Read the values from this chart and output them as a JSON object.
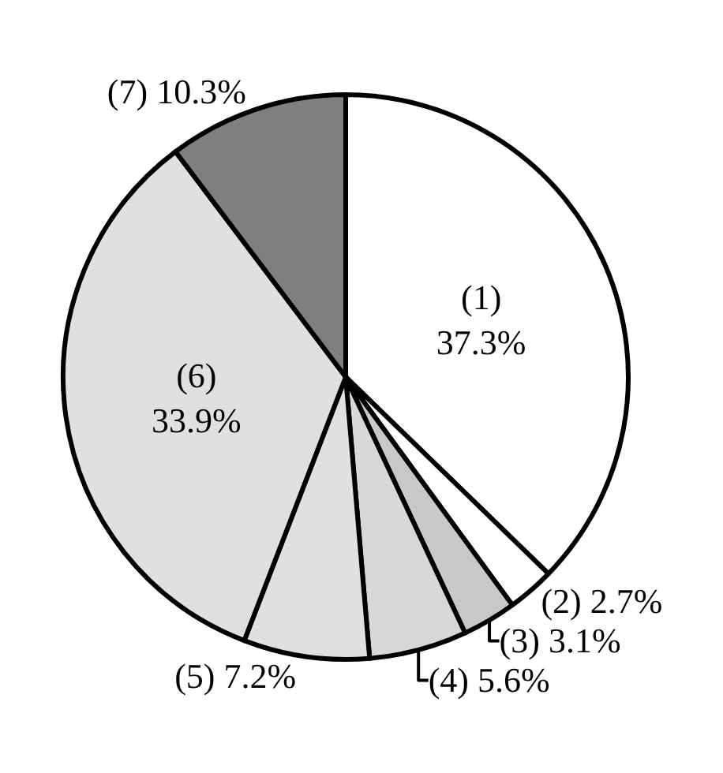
{
  "chart_data": {
    "type": "pie",
    "categories": [
      "(1)",
      "(2)",
      "(3)",
      "(4)",
      "(5)",
      "(6)",
      "(7)"
    ],
    "values": [
      37.3,
      2.7,
      3.1,
      5.6,
      7.2,
      33.9,
      10.3
    ],
    "value_labels": [
      "37.3%",
      "2.7%",
      "3.1%",
      "5.6%",
      "7.2%",
      "33.9%",
      "10.3%"
    ],
    "colors": [
      "#ffffff",
      "#ffffff",
      "#c8c8c8",
      "#d8d8d8",
      "#e0e0e0",
      "#e0e0e0",
      "#7f7f7f"
    ],
    "legend": false
  }
}
